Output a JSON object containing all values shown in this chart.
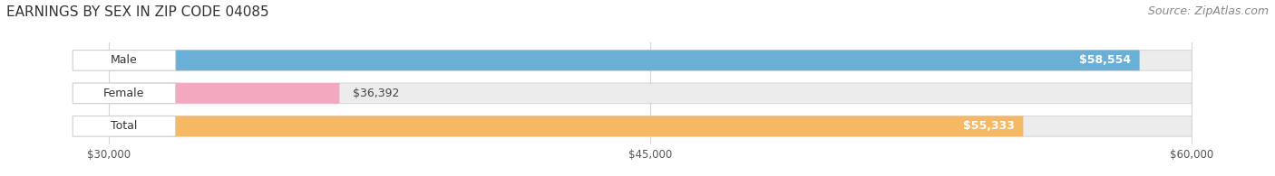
{
  "title": "EARNINGS BY SEX IN ZIP CODE 04085",
  "source": "Source: ZipAtlas.com",
  "categories": [
    "Male",
    "Female",
    "Total"
  ],
  "values": [
    58554,
    36392,
    55333
  ],
  "labels": [
    "$58,554",
    "$36,392",
    "$55,333"
  ],
  "bar_colors": [
    "#6aafd6",
    "#f4a8c0",
    "#f5b865"
  ],
  "xmin": 30000,
  "xmax": 60000,
  "xticks": [
    30000,
    45000,
    60000
  ],
  "xticklabels": [
    "$30,000",
    "$45,000",
    "$60,000"
  ],
  "background_color": "#ffffff",
  "bar_track_color": "#ececec",
  "bar_track_edge": "#d8d8d8",
  "badge_color": "#ffffff",
  "badge_edge": "#d0d0d0",
  "title_fontsize": 11,
  "source_fontsize": 9,
  "label_fontsize": 9,
  "category_fontsize": 9,
  "figsize": [
    14.06,
    1.95
  ],
  "dpi": 100
}
